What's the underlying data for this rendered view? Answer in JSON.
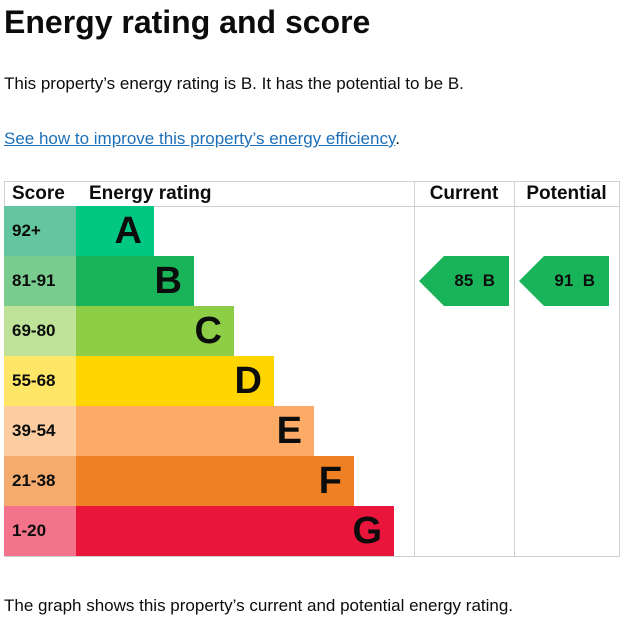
{
  "title": "Energy rating and score",
  "summary": "This property’s energy rating is B. It has the potential to be B.",
  "link_text": "See how to improve this property’s energy efficiency",
  "link_suffix": ".",
  "footer": "The graph shows this property’s current and potential energy rating.",
  "chart_data": {
    "type": "bar",
    "headers": {
      "score": "Score",
      "rating": "Energy rating",
      "current": "Current",
      "potential": "Potential"
    },
    "bands": [
      {
        "letter": "A",
        "range": "92+",
        "color": "#00c781",
        "score_color": "#64c6a0"
      },
      {
        "letter": "B",
        "range": "81-91",
        "color": "#19b459",
        "score_color": "#7acc8e"
      },
      {
        "letter": "C",
        "range": "69-80",
        "color": "#8dce46",
        "score_color": "#bde298"
      },
      {
        "letter": "D",
        "range": "55-68",
        "color": "#ffd500",
        "score_color": "#ffe666"
      },
      {
        "letter": "E",
        "range": "39-54",
        "color": "#fcaa65",
        "score_color": "#fdcca1"
      },
      {
        "letter": "F",
        "range": "21-38",
        "color": "#ef8023",
        "score_color": "#f5ab6d"
      },
      {
        "letter": "G",
        "range": "1-20",
        "color": "#e9153b",
        "score_color": "#f2738a"
      }
    ],
    "current": {
      "score": 85,
      "band": "B",
      "label": "85  B"
    },
    "potential": {
      "score": 91,
      "band": "B",
      "label": "91  B"
    }
  }
}
